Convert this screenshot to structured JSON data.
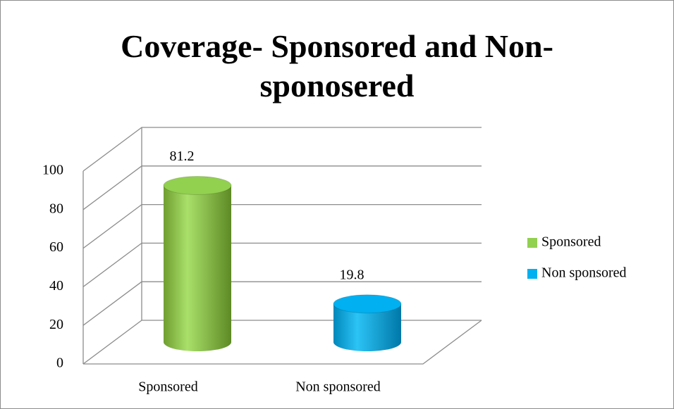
{
  "chart_data": {
    "type": "bar3d",
    "title": "Coverage- Sponsored and Non-sponosered",
    "categories": [
      "Sponsored",
      "Non sponsored"
    ],
    "series": [
      {
        "name": "Sponsored",
        "color": "#92d050",
        "values": [
          81.2,
          null
        ]
      },
      {
        "name": "Non sponsored",
        "color": "#00b0f0",
        "values": [
          null,
          19.8
        ]
      }
    ],
    "ylim": [
      0,
      100
    ],
    "yticks": [
      0,
      20,
      40,
      60,
      80,
      100
    ],
    "grid": true,
    "legend": "right"
  }
}
